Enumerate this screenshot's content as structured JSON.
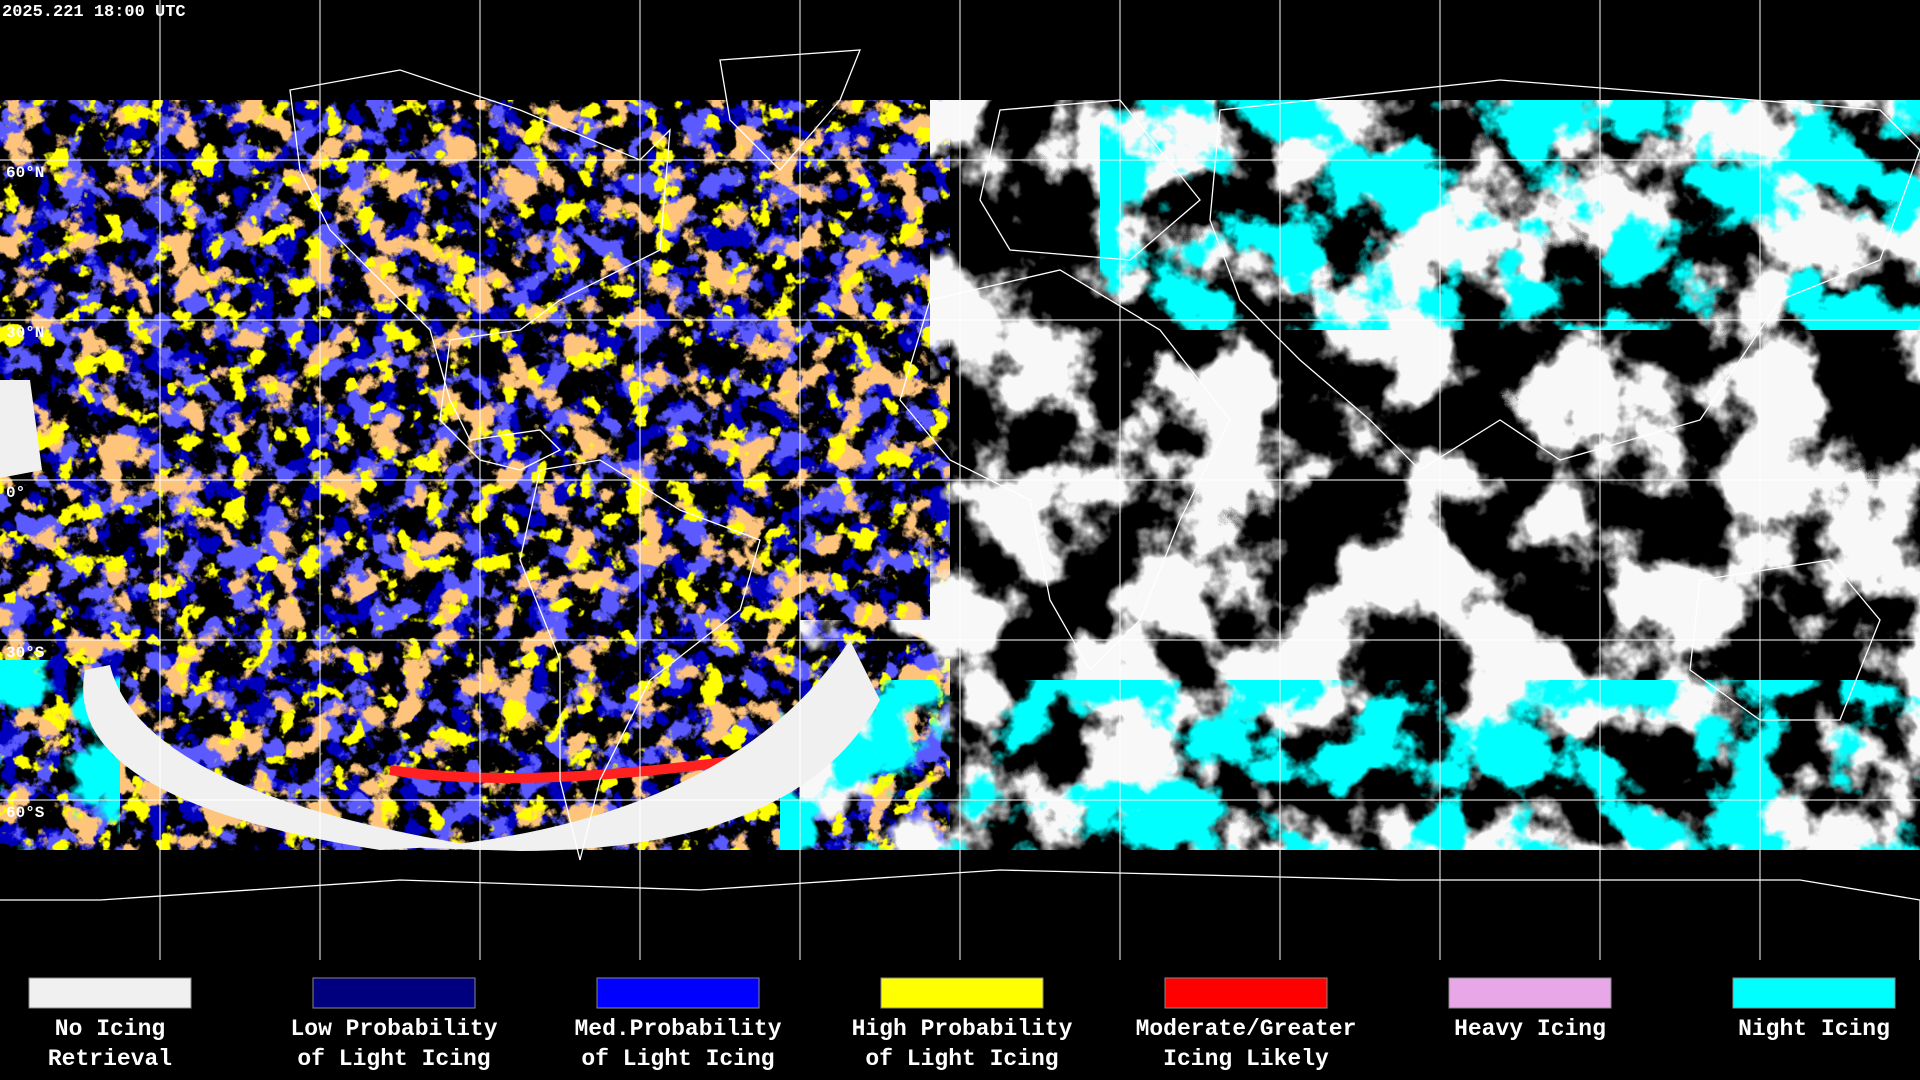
{
  "header": {
    "timestamp": "2025.221 18:00 UTC"
  },
  "latitude_labels": [
    "60°N",
    "30°N",
    "0°",
    "30°S",
    "60°S"
  ],
  "legend": [
    {
      "color": "#f0f0f0",
      "lines": [
        "No Icing",
        "Retrieval"
      ]
    },
    {
      "color": "#00007f",
      "lines": [
        "Low Probability",
        "of Light Icing"
      ]
    },
    {
      "color": "#0000ff",
      "lines": [
        "Med.Probability",
        "of Light Icing"
      ]
    },
    {
      "color": "#ffff00",
      "lines": [
        "High Probability",
        "of Light Icing"
      ]
    },
    {
      "color": "#ff0000",
      "lines": [
        "Moderate/Greater",
        "Icing Likely"
      ]
    },
    {
      "color": "#e8a8e8",
      "lines": [
        "Heavy Icing"
      ]
    },
    {
      "color": "#00ffff",
      "lines": [
        "Night Icing"
      ]
    }
  ]
}
